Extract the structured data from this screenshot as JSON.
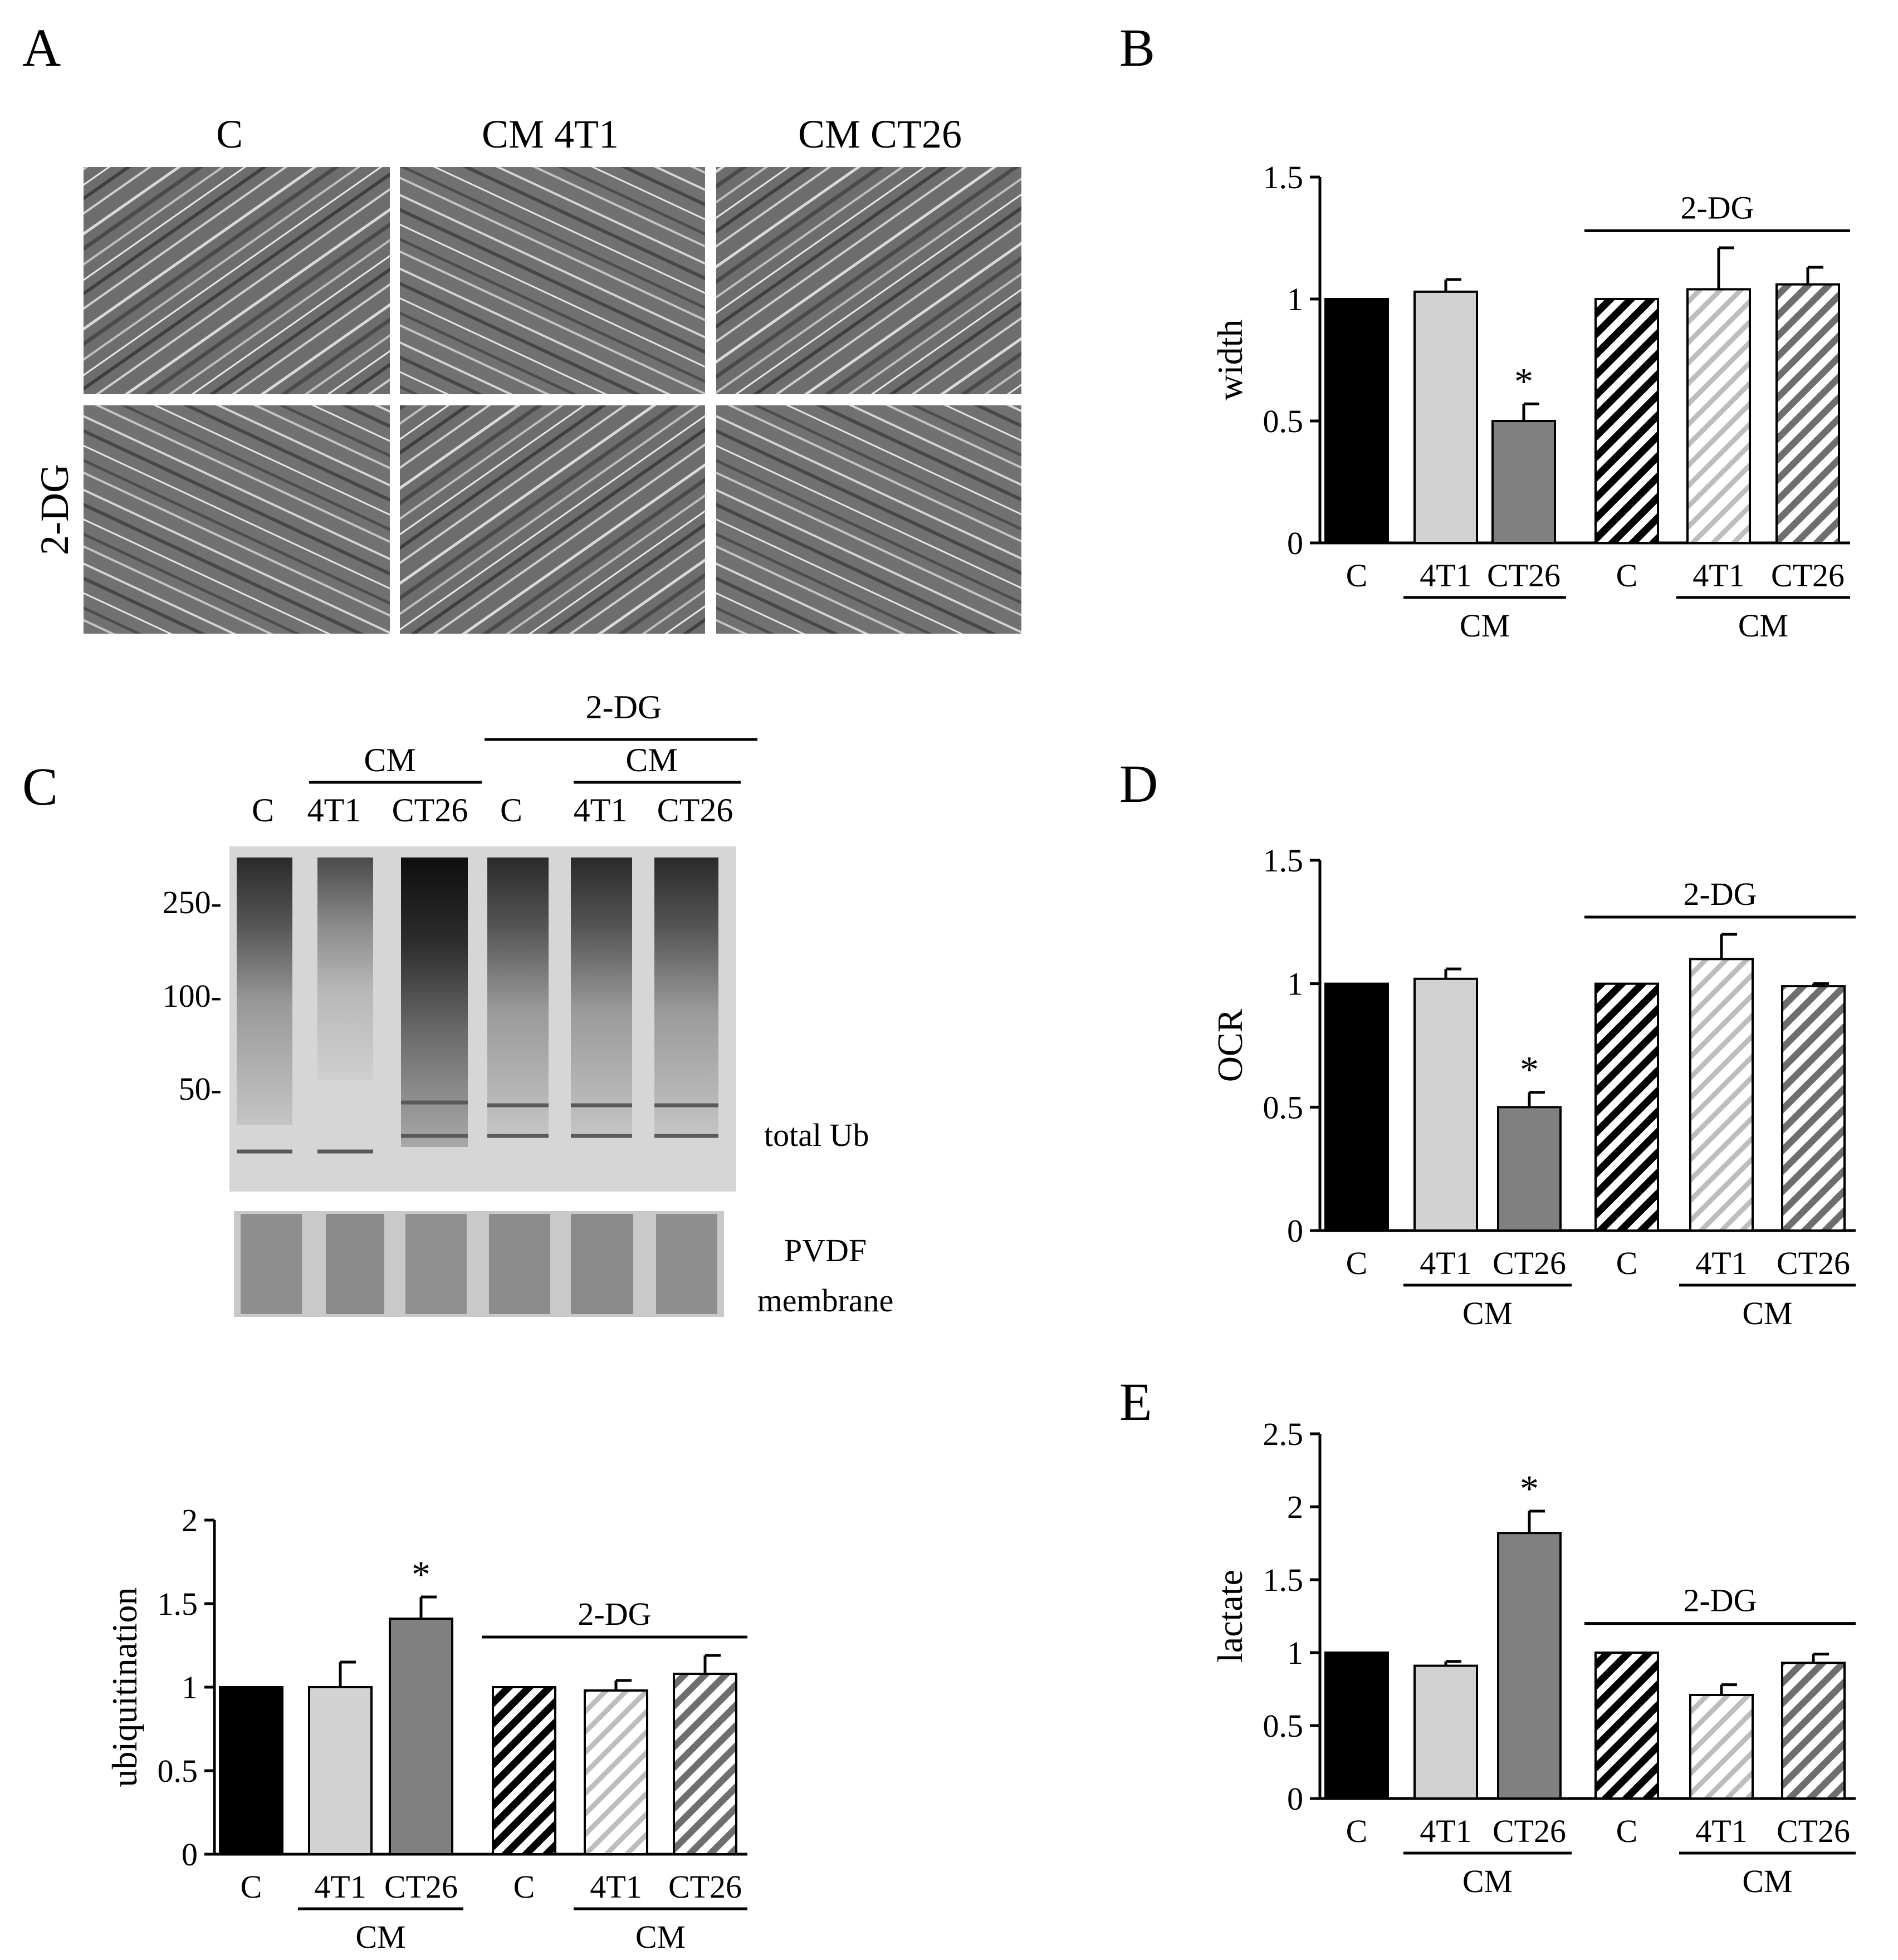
{
  "panels": {
    "A": {
      "letter": "A",
      "col_labels": [
        "C",
        "CM 4T1",
        "CM CT26"
      ],
      "row_label": "2-DG"
    },
    "B": {
      "letter": "B"
    },
    "C": {
      "letter": "C",
      "blot_header": {
        "top": "2-DG",
        "cm_left": "CM",
        "cm_right": "CM",
        "lanes": [
          "C",
          "4T1",
          "CT26",
          "C",
          "4T1",
          "CT26"
        ]
      },
      "markers": [
        "250-",
        "100-",
        "50-"
      ],
      "blot_labels": {
        "total": "total Ub",
        "pvdf_1": "PVDF",
        "pvdf_2": "membrane"
      }
    },
    "D": {
      "letter": "D"
    },
    "E": {
      "letter": "E"
    }
  },
  "colors": {
    "control": "#000000",
    "cm_4t1": "#d2d2d2",
    "cm_ct26": "#808080",
    "bg": "#ffffff"
  },
  "chart_data": [
    {
      "id": "B",
      "type": "bar",
      "ylabel": "width",
      "categories": [
        "C",
        "4T1",
        "CT26",
        "C",
        "4T1",
        "CT26"
      ],
      "group_labels": [
        "CM",
        "CM"
      ],
      "bracket_label": "2-DG",
      "ylim": [
        0,
        1.5
      ],
      "yticks": [
        "0",
        "0.5",
        "1",
        "1.5"
      ],
      "values": [
        1.0,
        1.03,
        0.5,
        1.0,
        1.04,
        1.06
      ],
      "errors": [
        0,
        0.05,
        0.07,
        0,
        0.17,
        0.07
      ],
      "significance": [
        "",
        "",
        "*",
        "",
        "",
        ""
      ]
    },
    {
      "id": "C",
      "type": "bar",
      "ylabel": "ubiquitination",
      "categories": [
        "C",
        "4T1",
        "CT26",
        "C",
        "4T1",
        "CT26"
      ],
      "group_labels": [
        "CM",
        "CM"
      ],
      "bracket_label": "2-DG",
      "ylim": [
        0,
        2
      ],
      "yticks": [
        "0",
        "0.5",
        "1",
        "1.5",
        "2"
      ],
      "values": [
        1.0,
        1.0,
        1.41,
        1.0,
        0.98,
        1.08
      ],
      "errors": [
        0,
        0.15,
        0.13,
        0,
        0.06,
        0.11
      ],
      "significance": [
        "",
        "",
        "*",
        "",
        "",
        ""
      ]
    },
    {
      "id": "D",
      "type": "bar",
      "ylabel": "OCR",
      "categories": [
        "C",
        "4T1",
        "CT26",
        "C",
        "4T1",
        "CT26"
      ],
      "group_labels": [
        "CM",
        "CM"
      ],
      "bracket_label": "2-DG",
      "ylim": [
        0,
        1.5
      ],
      "yticks": [
        "0",
        "0.5",
        "1",
        "1.5"
      ],
      "values": [
        1.0,
        1.02,
        0.5,
        1.0,
        1.1,
        0.99
      ],
      "errors": [
        0,
        0.04,
        0.06,
        0,
        0.1,
        0.01
      ],
      "significance": [
        "",
        "",
        "*",
        "",
        "",
        ""
      ]
    },
    {
      "id": "E",
      "type": "bar",
      "ylabel": "lactate",
      "categories": [
        "C",
        "4T1",
        "CT26",
        "C",
        "4T1",
        "CT26"
      ],
      "group_labels": [
        "CM",
        "CM"
      ],
      "bracket_label": "2-DG",
      "ylim": [
        0,
        2.5
      ],
      "yticks": [
        "0",
        "0.5",
        "1",
        "1.5",
        "2",
        "2.5"
      ],
      "values": [
        1.0,
        0.91,
        1.82,
        1.0,
        0.71,
        0.93
      ],
      "errors": [
        0,
        0.03,
        0.15,
        0,
        0.07,
        0.06
      ],
      "significance": [
        "",
        "",
        "*",
        "",
        "",
        ""
      ]
    }
  ]
}
